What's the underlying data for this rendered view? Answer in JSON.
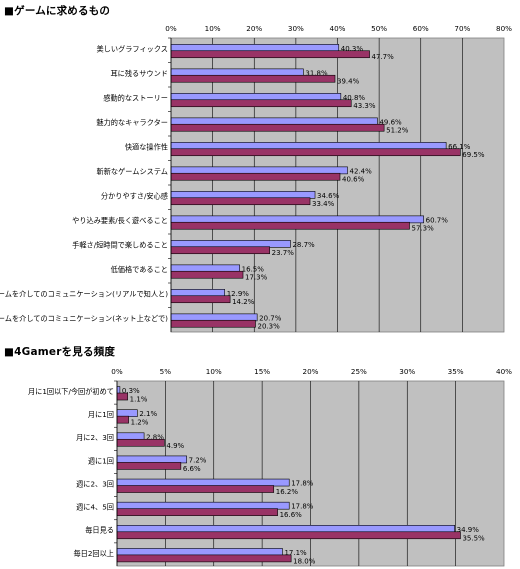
{
  "chart_data": [
    {
      "type": "bar",
      "orientation": "horizontal",
      "title": "■ゲームに求めるもの",
      "categories": [
        "美しいグラフィックス",
        "耳に残るサウンド",
        "感動的なストーリー",
        "魅力的なキャラクター",
        "快適な操作性",
        "斬新なゲームシステム",
        "分かりやすさ/安心感",
        "やり込み要素/長く遊べること",
        "手軽さ/短時間で楽しめること",
        "低価格であること",
        "ゲームを介してのコミュニケーション(リアルで知人と)",
        "ゲームを介してのコミュニケーション(ネット上などで)"
      ],
      "series": [
        {
          "values": [
            40.3,
            31.8,
            40.8,
            49.6,
            66.1,
            42.4,
            34.6,
            60.7,
            28.7,
            16.5,
            12.9,
            20.7
          ],
          "color": "#9999ff"
        },
        {
          "values": [
            47.7,
            39.4,
            43.3,
            51.2,
            69.5,
            40.6,
            33.4,
            57.3,
            23.7,
            17.3,
            14.2,
            20.3
          ],
          "color": "#993366"
        }
      ],
      "xlim": [
        0,
        80
      ],
      "xticks": [
        "0%",
        "10%",
        "20%",
        "30%",
        "40%",
        "50%",
        "60%",
        "70%",
        "80%"
      ],
      "grid": true,
      "plot_background": "#c0c0c0"
    },
    {
      "type": "bar",
      "orientation": "horizontal",
      "title": "■4Gamerを見る頻度",
      "categories": [
        "月に1回以下/今回が初めて",
        "月に1回",
        "月に2、3回",
        "週に1回",
        "週に2、3回",
        "週に4、5回",
        "毎日見る",
        "毎日2回以上"
      ],
      "series": [
        {
          "values": [
            0.3,
            2.1,
            2.8,
            7.2,
            17.8,
            17.8,
            34.9,
            17.1
          ],
          "color": "#9999ff"
        },
        {
          "values": [
            1.1,
            1.2,
            4.9,
            6.6,
            16.2,
            16.6,
            35.5,
            18.0
          ],
          "color": "#993366"
        }
      ],
      "xlim": [
        0,
        40
      ],
      "xticks": [
        "0%",
        "5%",
        "10%",
        "15%",
        "20%",
        "25%",
        "30%",
        "35%",
        "40%"
      ],
      "grid": true,
      "plot_background": "#c0c0c0"
    }
  ]
}
